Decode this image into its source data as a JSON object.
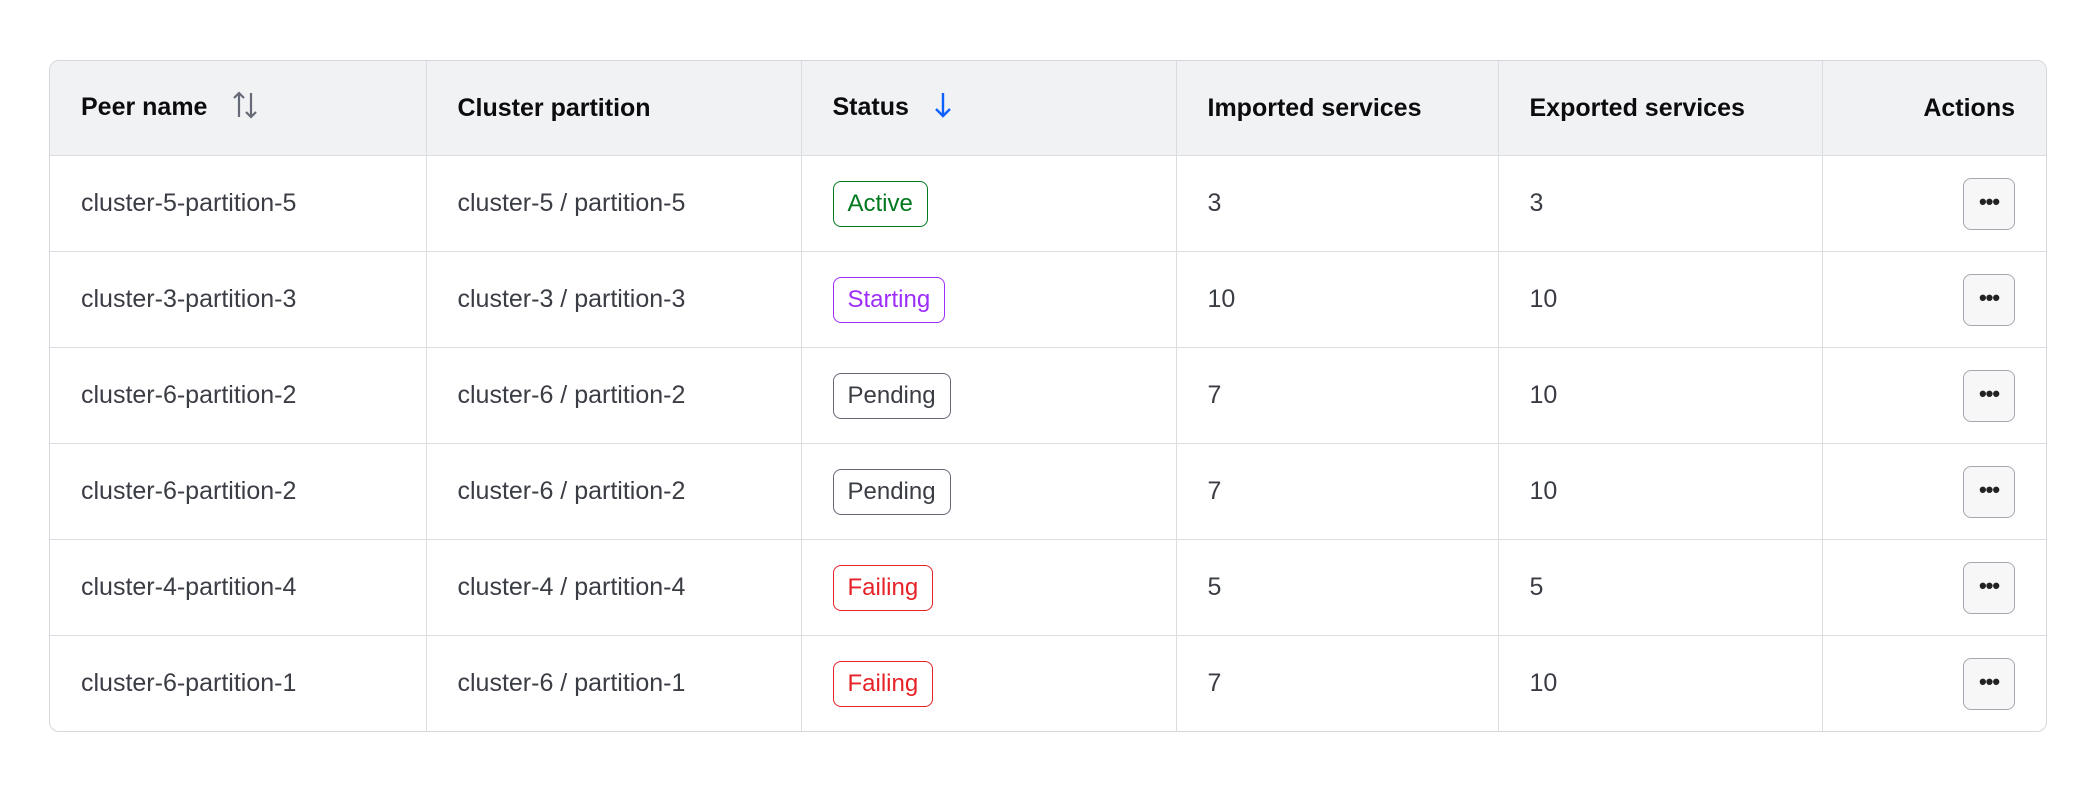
{
  "table": {
    "columns": [
      "Peer name",
      "Cluster partition",
      "Status",
      "Imported services",
      "Exported services",
      "Actions"
    ],
    "sort": {
      "peer_name_icon": "sort-both-icon",
      "status_icon": "sort-descending-icon",
      "active_color": "#1060ff"
    },
    "rows": [
      {
        "peer": "cluster-5-partition-5",
        "partition": "cluster-5 / partition-5",
        "status": "Active",
        "status_kind": "active",
        "imported": "3",
        "exported": "3"
      },
      {
        "peer": "cluster-3-partition-3",
        "partition": "cluster-3 / partition-3",
        "status": "Starting",
        "status_kind": "starting",
        "imported": "10",
        "exported": "10"
      },
      {
        "peer": "cluster-6-partition-2",
        "partition": "cluster-6 / partition-2",
        "status": "Pending",
        "status_kind": "pending",
        "imported": "7",
        "exported": "10"
      },
      {
        "peer": "cluster-6-partition-2",
        "partition": "cluster-6 / partition-2",
        "status": "Pending",
        "status_kind": "pending",
        "imported": "7",
        "exported": "10"
      },
      {
        "peer": "cluster-4-partition-4",
        "partition": "cluster-4 / partition-4",
        "status": "Failing",
        "status_kind": "failing",
        "imported": "5",
        "exported": "5"
      },
      {
        "peer": "cluster-6-partition-1",
        "partition": "cluster-6 / partition-1",
        "status": "Failing",
        "status_kind": "failing",
        "imported": "7",
        "exported": "10"
      }
    ],
    "action_label": "•••"
  },
  "colors": {
    "active": "#00781e",
    "starting": "#9e2dfa",
    "pending": "#656a76",
    "failing": "#e52228",
    "header_bg": "#f1f2f4"
  }
}
